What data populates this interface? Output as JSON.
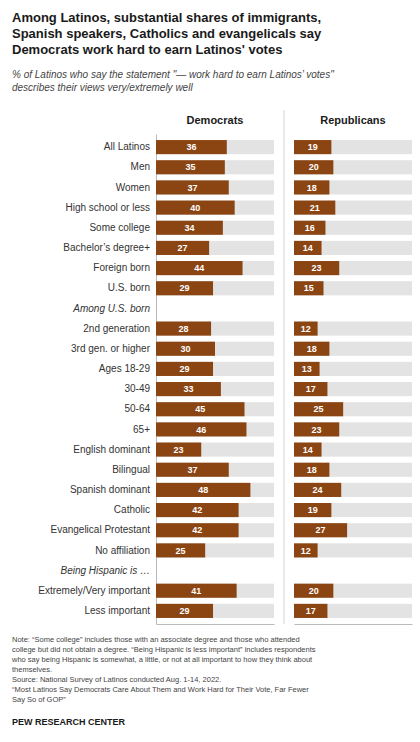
{
  "chart_data": {
    "type": "bar",
    "orientation": "horizontal",
    "title": "Among Latinos, substantial shares of immigrants,\nSpanish speakers, Catholics and evangelicals say\nDemocrats work hard to earn Latinos' votes",
    "subtitle": "% of Latinos who say the statement \"— work hard to earn Latinos’ votes\"\ndescribes their views very/extremely well",
    "categories": [
      "All Latinos",
      "Men",
      "Women",
      "High school or less",
      "Some college",
      "Bachelor’s degree+",
      "Foreign born",
      "U.S. born",
      "Among U.S. born",
      "2nd generation",
      "3rd gen. or higher",
      "Ages 18-29",
      "30-49",
      "50-64",
      "65+",
      "English dominant",
      "Bilingual",
      "Spanish dominant",
      "Catholic",
      "Evangelical Protestant",
      "No affiliation",
      "Being Hispanic is …",
      "Extremely/Very important",
      "Less important"
    ],
    "series": [
      {
        "name": "Democrats",
        "color": "#8B4513",
        "values": [
          36,
          35,
          37,
          40,
          34,
          27,
          44,
          29,
          null,
          28,
          30,
          29,
          33,
          45,
          46,
          23,
          37,
          48,
          42,
          42,
          25,
          null,
          41,
          29
        ]
      },
      {
        "name": "Republicans",
        "color": "#8B4513",
        "values": [
          19,
          20,
          18,
          21,
          16,
          14,
          23,
          15,
          null,
          12,
          18,
          13,
          17,
          25,
          23,
          14,
          18,
          24,
          19,
          27,
          12,
          null,
          20,
          17
        ]
      }
    ],
    "xlim": [
      0,
      60
    ],
    "data_labels": true,
    "tick_labels": "y",
    "annotations": [
      "Note: “Some college” includes those with an associate degree and those who attended\ncollege but did not obtain a degree. “Being Hispanic is less important” includes respondents\nwho say being Hispanic is somewhat, a little, or not at all important to how they think about\nthemselves.\nSource: National Survey of Latinos conducted Aug. 1-14, 2022.\n“Most Latinos Say Democrats Care About Them and Work Hard for Their Vote, Far Fewer\nSay So of GOP”",
      "PEW RESEARCH CENTER"
    ]
  }
}
